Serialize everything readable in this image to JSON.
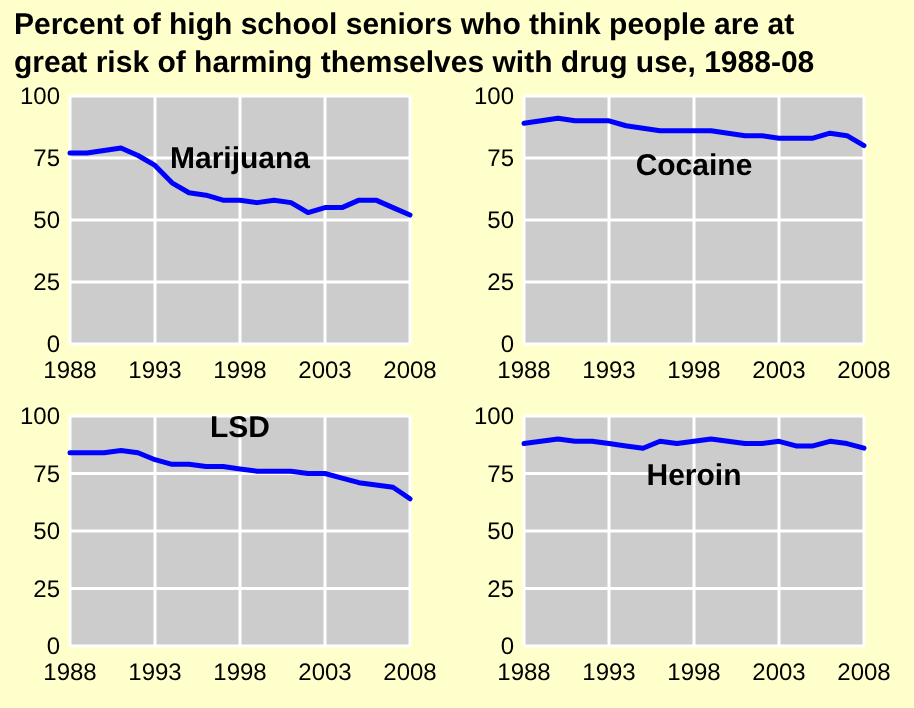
{
  "chart_data": [
    {
      "type": "line",
      "title": "Percent of high school seniors who think people are at great risk of harming themselves with drug use, 1988-08",
      "x": [
        1988,
        1989,
        1990,
        1991,
        1992,
        1993,
        1994,
        1995,
        1996,
        1997,
        1998,
        1999,
        2000,
        2001,
        2002,
        2003,
        2004,
        2005,
        2006,
        2007,
        2008
      ],
      "series": [
        {
          "name": "Marijuana",
          "color": "#0000ff",
          "values": [
            77,
            77,
            78,
            79,
            76,
            72,
            65,
            61,
            60,
            58,
            58,
            57,
            58,
            57,
            53,
            55,
            55,
            58,
            58,
            55,
            52
          ]
        }
      ],
      "xlim": [
        1988,
        2008
      ],
      "xticks": [
        1988,
        1993,
        1998,
        2003,
        2008
      ],
      "ylim": [
        0,
        100
      ],
      "yticks": [
        0,
        25,
        50,
        75,
        100
      ],
      "grid": true
    },
    {
      "type": "line",
      "x": [
        1988,
        1989,
        1990,
        1991,
        1992,
        1993,
        1994,
        1995,
        1996,
        1997,
        1998,
        1999,
        2000,
        2001,
        2002,
        2003,
        2004,
        2005,
        2006,
        2007,
        2008
      ],
      "series": [
        {
          "name": "Cocaine",
          "color": "#0000ff",
          "values": [
            89,
            90,
            91,
            90,
            90,
            90,
            88,
            87,
            86,
            86,
            86,
            86,
            85,
            84,
            84,
            83,
            83,
            83,
            85,
            84,
            80
          ]
        }
      ],
      "xlim": [
        1988,
        2008
      ],
      "xticks": [
        1988,
        1993,
        1998,
        2003,
        2008
      ],
      "ylim": [
        0,
        100
      ],
      "yticks": [
        0,
        25,
        50,
        75,
        100
      ],
      "grid": true
    },
    {
      "type": "line",
      "x": [
        1988,
        1989,
        1990,
        1991,
        1992,
        1993,
        1994,
        1995,
        1996,
        1997,
        1998,
        1999,
        2000,
        2001,
        2002,
        2003,
        2004,
        2005,
        2006,
        2007,
        2008
      ],
      "series": [
        {
          "name": "LSD",
          "color": "#0000ff",
          "values": [
            84,
            84,
            84,
            85,
            84,
            81,
            79,
            79,
            78,
            78,
            77,
            76,
            76,
            76,
            75,
            75,
            73,
            71,
            70,
            69,
            64
          ]
        }
      ],
      "xlim": [
        1988,
        2008
      ],
      "xticks": [
        1988,
        1993,
        1998,
        2003,
        2008
      ],
      "ylim": [
        0,
        100
      ],
      "yticks": [
        0,
        25,
        50,
        75,
        100
      ],
      "grid": true
    },
    {
      "type": "line",
      "x": [
        1988,
        1989,
        1990,
        1991,
        1992,
        1993,
        1994,
        1995,
        1996,
        1997,
        1998,
        1999,
        2000,
        2001,
        2002,
        2003,
        2004,
        2005,
        2006,
        2007,
        2008
      ],
      "series": [
        {
          "name": "Heroin",
          "color": "#0000ff",
          "values": [
            88,
            89,
            90,
            89,
            89,
            88,
            87,
            86,
            89,
            88,
            89,
            90,
            89,
            88,
            88,
            89,
            87,
            87,
            89,
            88,
            86
          ]
        }
      ],
      "xlim": [
        1988,
        2008
      ],
      "xticks": [
        1988,
        1993,
        1998,
        2003,
        2008
      ],
      "ylim": [
        0,
        100
      ],
      "yticks": [
        0,
        25,
        50,
        75,
        100
      ],
      "grid": true
    }
  ]
}
